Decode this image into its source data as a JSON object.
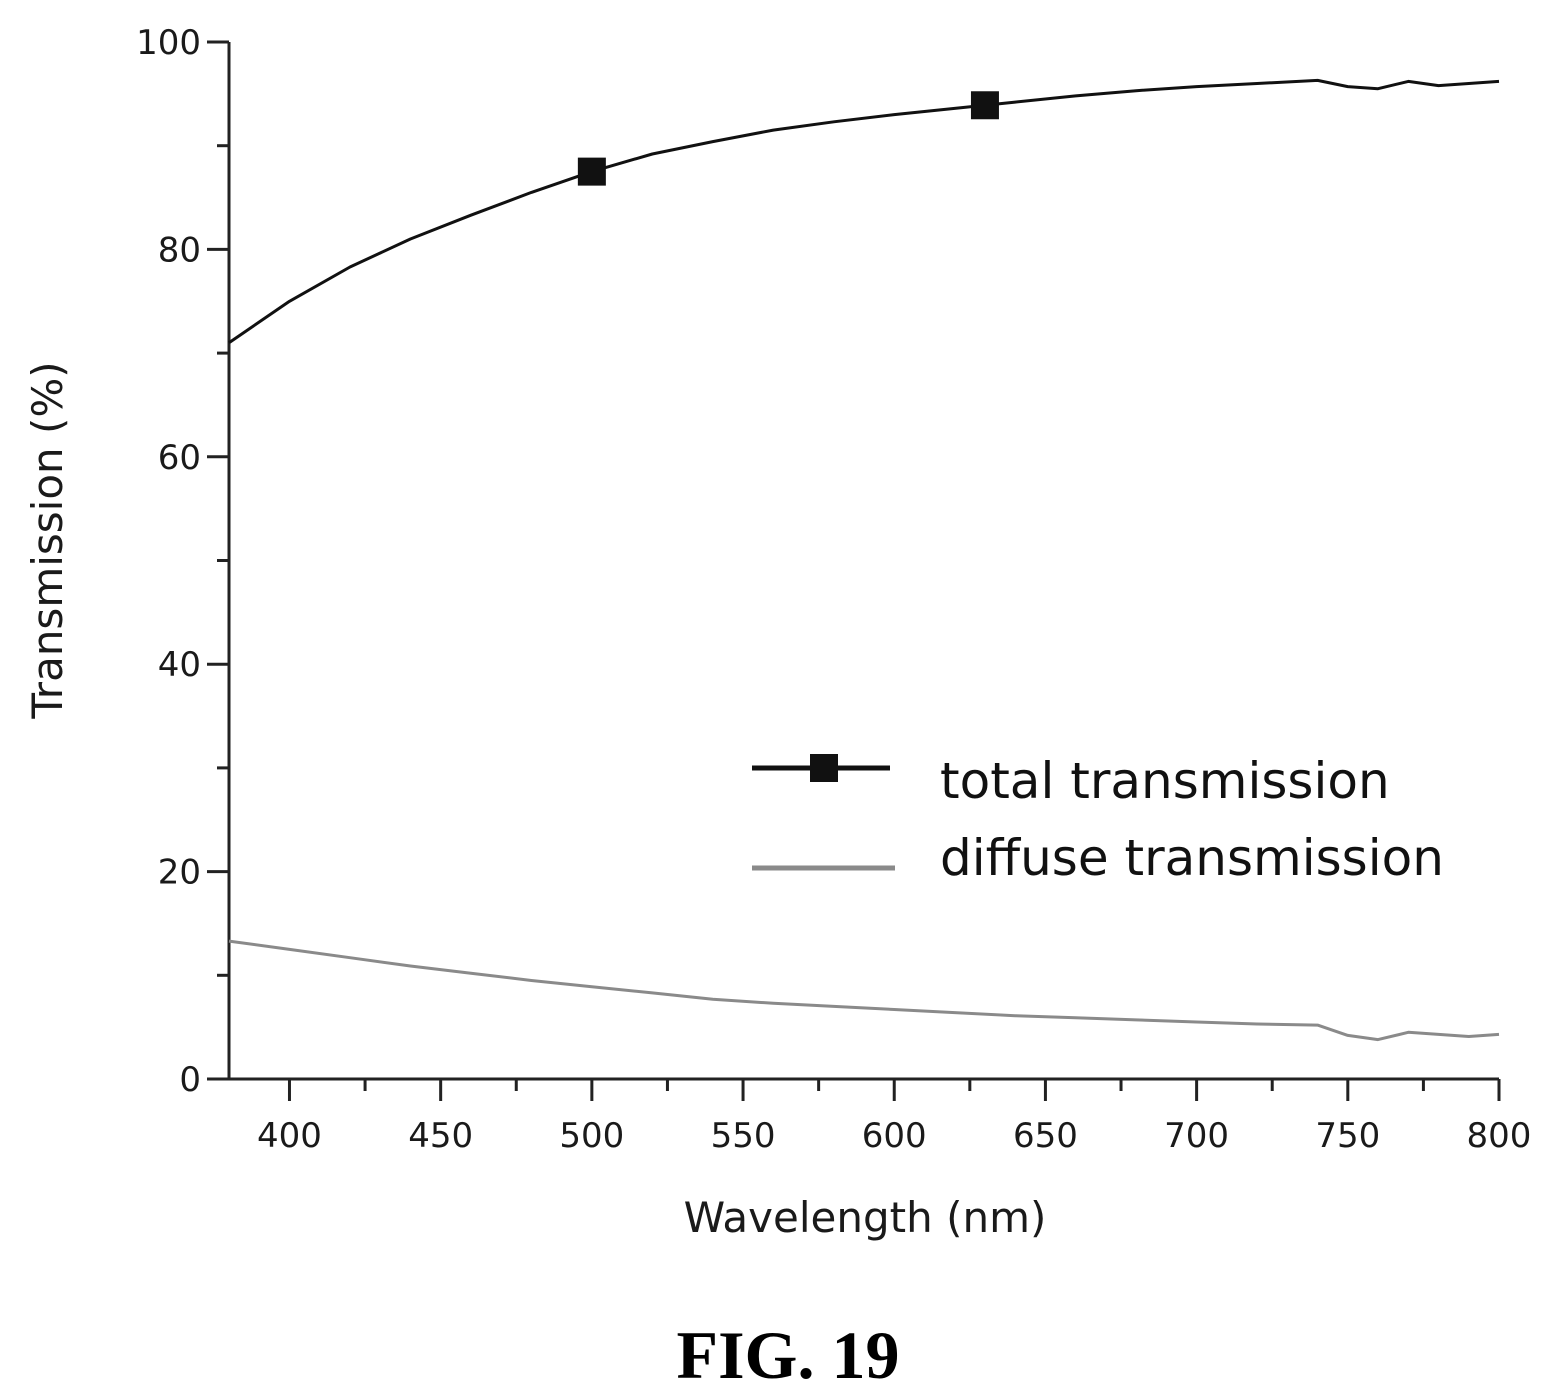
{
  "chart_data": {
    "type": "line",
    "title": "",
    "xlabel": "Wavelength (nm)",
    "ylabel": "Transmission (%)",
    "xlim": [
      380,
      800
    ],
    "ylim": [
      0,
      100
    ],
    "xticks": [
      400,
      450,
      500,
      550,
      600,
      650,
      700,
      750,
      800
    ],
    "yticks": [
      0,
      20,
      40,
      60,
      80,
      100
    ],
    "grid": false,
    "legend_position": "right",
    "series": [
      {
        "name": "total transmission",
        "color": "#111111",
        "marker": "square",
        "marker_x": [
          500,
          630
        ],
        "x": [
          380,
          400,
          420,
          440,
          460,
          480,
          500,
          520,
          540,
          560,
          580,
          600,
          620,
          640,
          660,
          680,
          700,
          720,
          740,
          750,
          760,
          770,
          780,
          790,
          800
        ],
        "y": [
          71,
          75,
          78.3,
          81,
          83.3,
          85.5,
          87.5,
          89.2,
          90.4,
          91.5,
          92.3,
          93,
          93.6,
          94.2,
          94.8,
          95.3,
          95.7,
          96,
          96.3,
          95.7,
          95.5,
          96.2,
          95.8,
          96,
          96.2
        ]
      },
      {
        "name": "diffuse transmission",
        "color": "#8a8a8a",
        "marker": "none",
        "x": [
          380,
          400,
          420,
          440,
          460,
          480,
          500,
          520,
          540,
          560,
          580,
          600,
          620,
          640,
          660,
          680,
          700,
          720,
          740,
          750,
          760,
          770,
          780,
          790,
          800
        ],
        "y": [
          13.3,
          12.5,
          11.7,
          10.9,
          10.2,
          9.5,
          8.9,
          8.3,
          7.7,
          7.3,
          7,
          6.7,
          6.4,
          6.1,
          5.9,
          5.7,
          5.5,
          5.3,
          5.2,
          4.2,
          3.8,
          4.5,
          4.3,
          4.1,
          4.3
        ]
      }
    ],
    "caption": "FIG. 19"
  }
}
